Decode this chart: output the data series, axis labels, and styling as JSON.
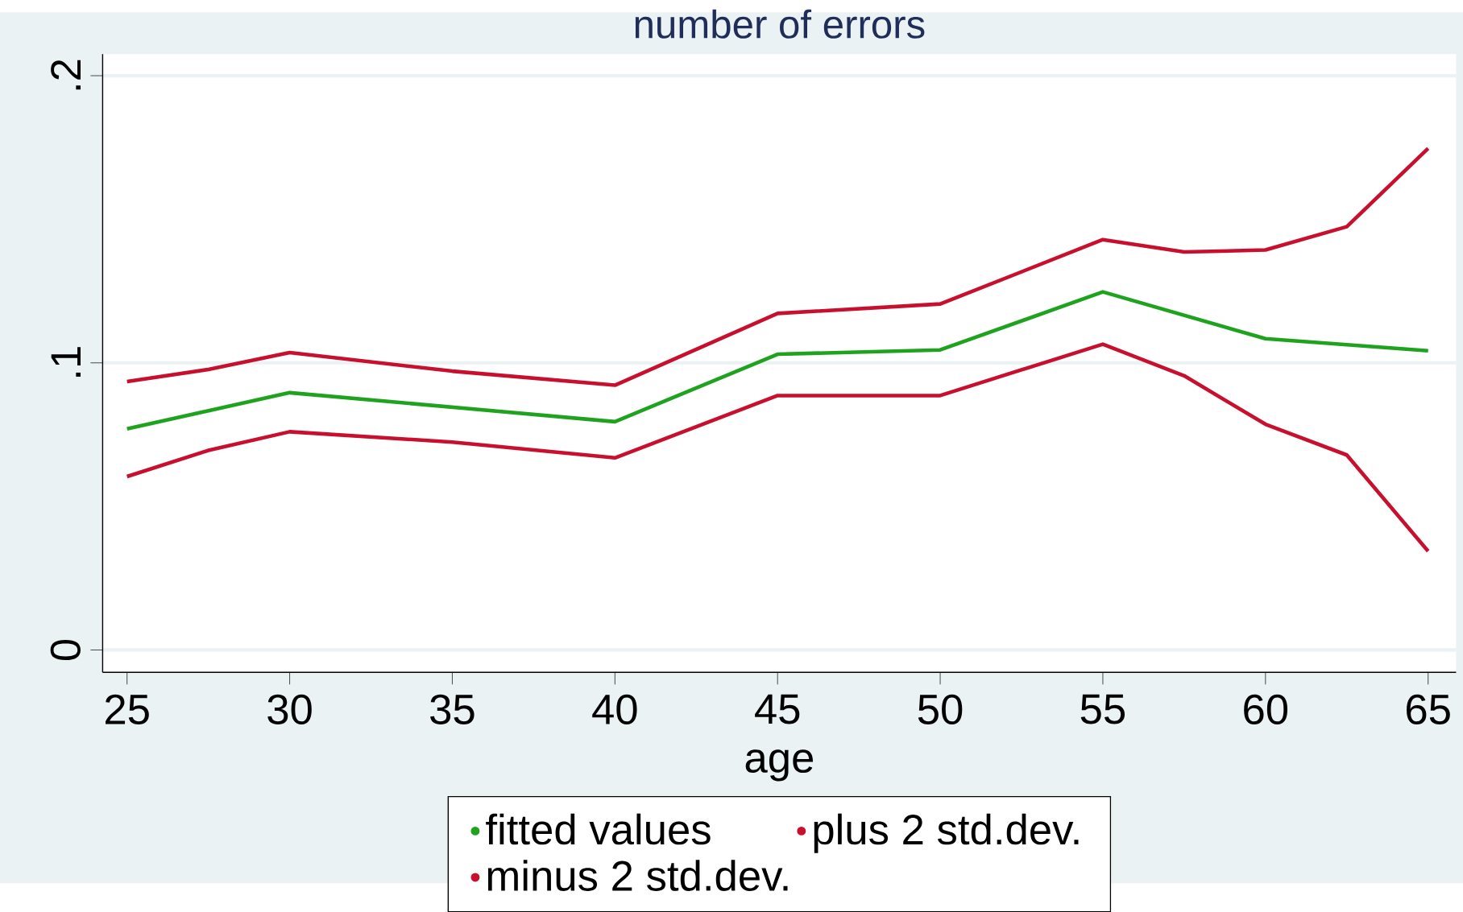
{
  "chart_data": {
    "type": "line",
    "title": "number of errors",
    "xlabel": "age",
    "xlim": [
      24.25,
      65.86
    ],
    "ylim": [
      -0.0078,
      0.2075
    ],
    "xticks": [
      25,
      30,
      35,
      40,
      45,
      50,
      55,
      60,
      65
    ],
    "yticks": [
      {
        "value": 0,
        "label": "0"
      },
      {
        "value": 0.1,
        "label": ".1"
      },
      {
        "value": 0.2,
        "label": ".2"
      }
    ],
    "grid": "y",
    "legend": "bottom",
    "line_style": "solid",
    "series": [
      {
        "name": "fitted values",
        "color": "#1fa31f",
        "x": [
          25,
          30,
          40,
          45,
          50,
          55,
          60,
          65
        ],
        "values": [
          0.077,
          0.0896,
          0.0795,
          0.103,
          0.1045,
          0.1247,
          0.1084,
          0.1042
        ]
      },
      {
        "name": "plus 2 std.dev.",
        "color": "#c8102e",
        "x": [
          25,
          27.5,
          30,
          35,
          40,
          45,
          50,
          55,
          57.5,
          60,
          62.5,
          65
        ],
        "values": [
          0.0935,
          0.0977,
          0.1036,
          0.0971,
          0.0922,
          0.1172,
          0.1205,
          0.1429,
          0.1386,
          0.1393,
          0.1474,
          0.1747
        ]
      },
      {
        "name": "minus 2 std.dev.",
        "color": "#c8102e",
        "x": [
          25,
          27.5,
          30,
          35,
          40,
          45,
          50,
          55,
          57.5,
          60,
          62.5,
          65
        ],
        "values": [
          0.0604,
          0.0695,
          0.076,
          0.0724,
          0.0669,
          0.0886,
          0.0886,
          0.1065,
          0.0955,
          0.0786,
          0.0679,
          0.0344
        ]
      }
    ]
  }
}
